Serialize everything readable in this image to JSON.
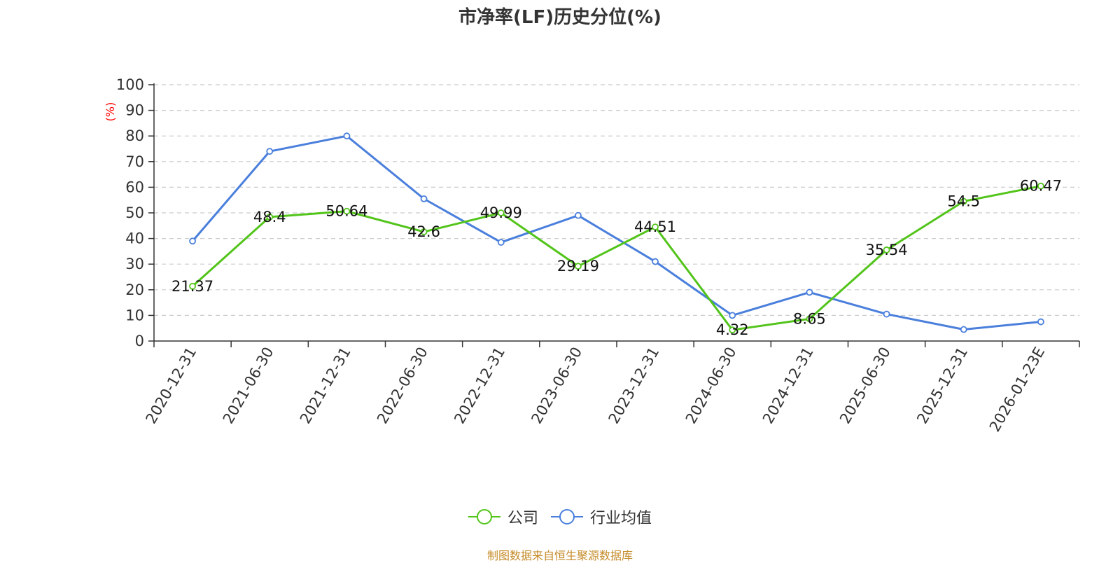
{
  "colors": {
    "company": "#52c41a",
    "industry": "#4a7fdc",
    "axis": "#333333",
    "grid": "#cccccc",
    "ylabel": "#ff0000",
    "source": "#c58b2a"
  },
  "chart_data": {
    "type": "line",
    "title": "市净率(LF)历史分位(%)",
    "ylabel": "(%)",
    "ylim": [
      0,
      100
    ],
    "yticks": [
      0,
      10,
      20,
      30,
      40,
      50,
      60,
      70,
      80,
      90,
      100
    ],
    "grid": true,
    "legend_position": "bottom",
    "categories": [
      "2020-12-31",
      "2021-06-30",
      "2021-12-31",
      "2022-06-30",
      "2022-12-31",
      "2023-06-30",
      "2023-12-31",
      "2024-06-30",
      "2024-12-31",
      "2025-06-30",
      "2025-12-31",
      "2026-01-23E"
    ],
    "series": [
      {
        "name": "公司",
        "values": [
          21.37,
          48.4,
          50.64,
          42.6,
          49.99,
          29.19,
          44.51,
          4.32,
          8.65,
          35.54,
          54.5,
          60.47
        ],
        "labels": [
          "21.37",
          "48.4",
          "50.64",
          "42.6",
          "49.99",
          "29.19",
          "44.51",
          "4.32",
          "8.65",
          "35.54",
          "54.5",
          "60.47"
        ]
      },
      {
        "name": "行业均值",
        "values": [
          39,
          74,
          80,
          55.5,
          38.5,
          49,
          31,
          10,
          19,
          10.5,
          4.5,
          7.5
        ]
      }
    ]
  },
  "legend": {
    "company": "公司",
    "industry": "行业均值"
  },
  "source": "制图数据来自恒生聚源数据库"
}
